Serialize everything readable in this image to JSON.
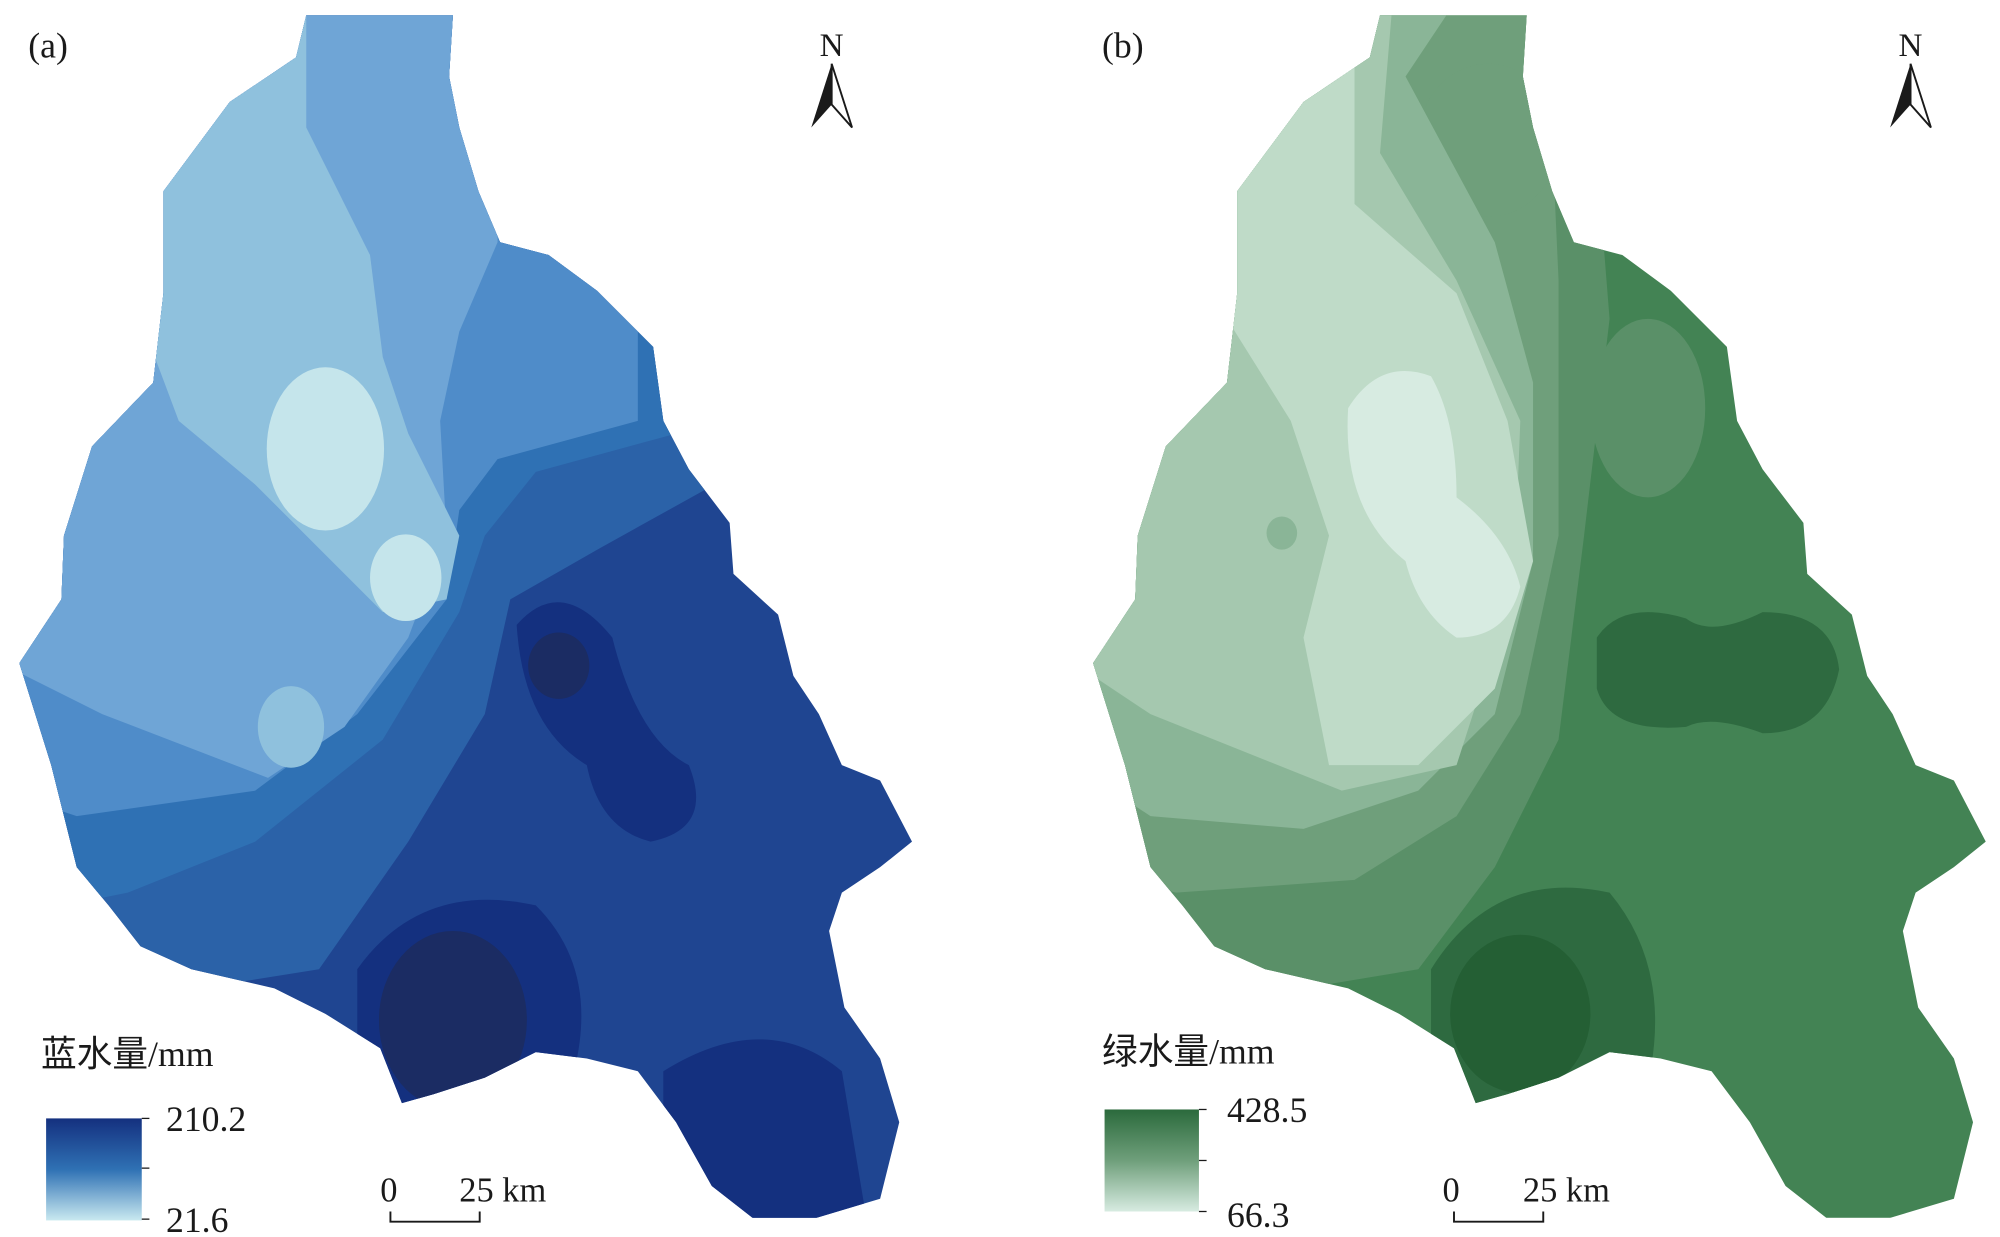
{
  "panels": [
    {
      "label": "(a)",
      "north": "N",
      "legend": {
        "title": "蓝水量/mm",
        "max": "210.2",
        "min": "21.6",
        "color_high": "#14307f",
        "color_low": "#c9e9f0"
      },
      "scale_bar": {
        "zero": "0",
        "distance": "25 km"
      },
      "palette": [
        "#1b2c63",
        "#14307f",
        "#1f4591",
        "#2b62a8",
        "#2f71b4",
        "#4f8cc9",
        "#6fa5d6",
        "#8fc1dd",
        "#c5e5eb"
      ]
    },
    {
      "label": "(b)",
      "north": "N",
      "legend": {
        "title": "绿水量/mm",
        "max": "428.5",
        "min": "66.3",
        "color_high": "#2b6a3c",
        "color_low": "#d7ebe1"
      },
      "scale_bar": {
        "zero": "0",
        "distance": "25 km"
      },
      "palette": [
        "#245f34",
        "#2e6a40",
        "#438354",
        "#5a9068",
        "#6f9f7b",
        "#8ab597",
        "#a5c8af",
        "#bfdbc8",
        "#d7ebe1"
      ]
    }
  ]
}
